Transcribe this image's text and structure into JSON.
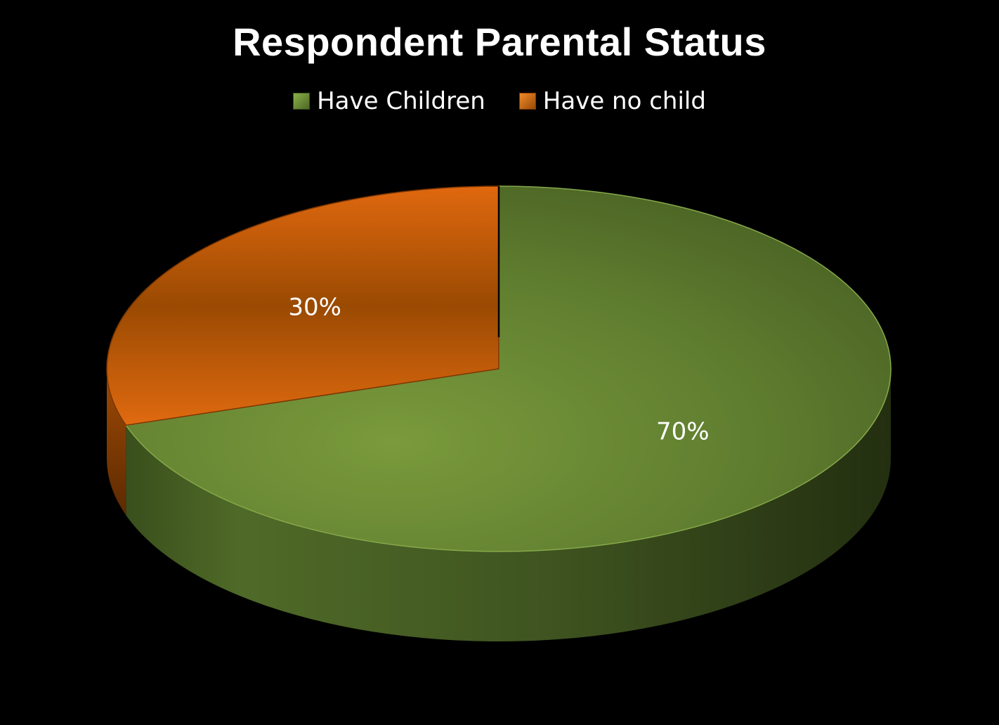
{
  "chart_data": {
    "type": "pie",
    "title": "Respondent Parental Status",
    "legend_position": "top",
    "slices": [
      {
        "label": "Have Children",
        "value": 70,
        "value_label": "70%",
        "color": "#6b8a34"
      },
      {
        "label": "Have no child",
        "value": 30,
        "value_label": "30%",
        "color": "#c8600f"
      }
    ]
  }
}
